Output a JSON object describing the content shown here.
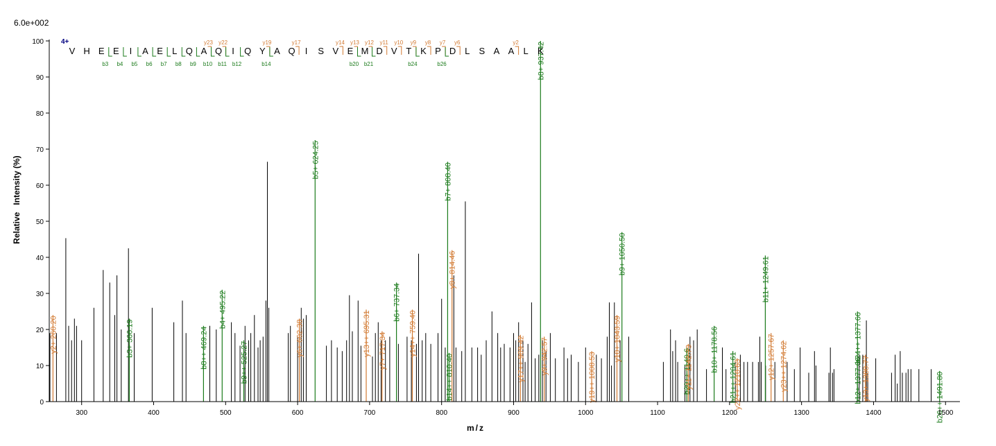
{
  "chart_data": {
    "type": "bar",
    "scale_label": "6.0e+002",
    "xlabel": "m/z",
    "ylabel": "Relative   Intensity (%)",
    "xlim": [
      255,
      1520
    ],
    "ylim": [
      0,
      100
    ],
    "x_ticks": [
      300,
      400,
      500,
      600,
      700,
      800,
      900,
      1000,
      1100,
      1200,
      1300,
      1400,
      1500
    ],
    "y_ticks": [
      0,
      10,
      20,
      30,
      40,
      50,
      60,
      70,
      80,
      90,
      100
    ],
    "colors": {
      "b": "#1a7a1a",
      "y": "#d27a32",
      "other": "#000000",
      "axis": "#000000",
      "charge": "#000080"
    },
    "charge_label": "4+",
    "sequence": [
      "V",
      "H",
      "E",
      "E",
      "I",
      "A",
      "E",
      "L",
      "Q",
      "A",
      "Q",
      "I",
      "Q",
      "Y",
      "A",
      "Q",
      "I",
      "S",
      "V",
      "E",
      "M",
      "D",
      "V",
      "T",
      "K",
      "P",
      "D",
      "L",
      "S",
      "A",
      "A",
      "L",
      "K"
    ],
    "b_ions": [
      {
        "after": 3,
        "label": "b3"
      },
      {
        "after": 4,
        "label": "b4"
      },
      {
        "after": 5,
        "label": "b5"
      },
      {
        "after": 6,
        "label": "b6"
      },
      {
        "after": 7,
        "label": "b7"
      },
      {
        "after": 8,
        "label": "b8"
      },
      {
        "after": 9,
        "label": "b9"
      },
      {
        "after": 10,
        "label": "b10"
      },
      {
        "after": 11,
        "label": "b11"
      },
      {
        "after": 12,
        "label": "b12"
      },
      {
        "after": 14,
        "label": "b14"
      },
      {
        "after": 20,
        "label": "b20"
      },
      {
        "after": 21,
        "label": "b21"
      },
      {
        "after": 24,
        "label": "b24"
      },
      {
        "after": 26,
        "label": "b26"
      }
    ],
    "y_ions": [
      {
        "after": 10,
        "label": "y23"
      },
      {
        "after": 11,
        "label": "y22"
      },
      {
        "after": 14,
        "label": "y19"
      },
      {
        "after": 16,
        "label": "y17"
      },
      {
        "after": 19,
        "label": "y14"
      },
      {
        "after": 20,
        "label": "y13"
      },
      {
        "after": 21,
        "label": "y12"
      },
      {
        "after": 22,
        "label": "y11"
      },
      {
        "after": 23,
        "label": "y10"
      },
      {
        "after": 24,
        "label": "y9"
      },
      {
        "after": 25,
        "label": "y8"
      },
      {
        "after": 26,
        "label": "y7"
      },
      {
        "after": 27,
        "label": "y6"
      },
      {
        "after": 31,
        "label": "y2"
      }
    ],
    "annotated_peaks": [
      {
        "mz": 260.2,
        "intensity": 24,
        "ion": "y",
        "label": "y2+ 260.20"
      },
      {
        "mz": 366.19,
        "intensity": 23,
        "ion": "b",
        "label": "b3+ 366.19"
      },
      {
        "mz": 469.24,
        "intensity": 21,
        "ion": "b",
        "label": "b8++ 469.24"
      },
      {
        "mz": 495.22,
        "intensity": 31,
        "ion": "b",
        "label": "b4+ 495.22"
      },
      {
        "mz": 525.27,
        "intensity": 17,
        "ion": "b",
        "label": "b9++ 525.27"
      },
      {
        "mz": 602.38,
        "intensity": 23,
        "ion": "y",
        "label": "y6+ 602.38"
      },
      {
        "mz": 624.25,
        "intensity": 72.5,
        "ion": "b",
        "label": "b5+ 624.25"
      },
      {
        "mz": 695.31,
        "intensity": 25.5,
        "ion": "y",
        "label": "y13++ 695.31"
      },
      {
        "mz": 717.34,
        "intensity": 19.5,
        "ion": "y",
        "label": "y7+ 717.34"
      },
      {
        "mz": 737.34,
        "intensity": 33,
        "ion": "b",
        "label": "b6+ 737.34"
      },
      {
        "mz": 759.4,
        "intensity": 25.5,
        "ion": "y",
        "label": "y14++ 759.40"
      },
      {
        "mz": 808.4,
        "intensity": 66.5,
        "ion": "b",
        "label": "b7+ 808.40"
      },
      {
        "mz": 810.4,
        "intensity": 13.5,
        "ion": "b",
        "label": "b14++ 810.40"
      },
      {
        "mz": 814.46,
        "intensity": 42,
        "ion": "y",
        "label": "y8+ 814.46"
      },
      {
        "mz": 909.42,
        "intensity": 18.5,
        "ion": "y",
        "label": "y17++ 909.42"
      },
      {
        "mz": 937.42,
        "intensity": 100,
        "ion": "b",
        "label": "b8+ 937.42"
      },
      {
        "mz": 942.57,
        "intensity": 18,
        "ion": "y",
        "label": "y9+ 942.57"
      },
      {
        "mz": 1008.53,
        "intensity": 14,
        "ion": "y",
        "label": "y19++ 1008.53"
      },
      {
        "mz": 1043.59,
        "intensity": 24,
        "ion": "y",
        "label": "y10+ 1043.59"
      },
      {
        "mz": 1050.5,
        "intensity": 47,
        "ion": "b",
        "label": "b9+ 1050.50"
      },
      {
        "mz": 1140.6,
        "intensity": 15,
        "ion": "b",
        "label": "b20++ 1140.6"
      },
      {
        "mz": 1142.73,
        "intensity": 16,
        "ion": "y",
        "label": "y11+ 1142.73"
      },
      {
        "mz": 1178.56,
        "intensity": 21,
        "ion": "b",
        "label": "b10+ 1178.56"
      },
      {
        "mz": 1204.61,
        "intensity": 14,
        "ion": "b",
        "label": "b21++ 1204.61"
      },
      {
        "mz": 1210.63,
        "intensity": 12,
        "ion": "y",
        "label": "y22++ 1210.63"
      },
      {
        "mz": 1249.61,
        "intensity": 40.5,
        "ion": "b",
        "label": "b11+ 1249.61"
      },
      {
        "mz": 1257.67,
        "intensity": 19,
        "ion": "y",
        "label": "y12+ 1257.67"
      },
      {
        "mz": 1274.62,
        "intensity": 17,
        "ion": "y",
        "label": "y23++ 1274.62"
      },
      {
        "mz": 1377.66,
        "intensity": 12.5,
        "ion": "b",
        "label": "b12+ 1377.66"
      },
      {
        "mz": 1377.66,
        "intensity": 25,
        "ion": "b",
        "label": "b24++ 1377.66"
      },
      {
        "mz": 1388.77,
        "intensity": 13,
        "ion": "y",
        "label": "y13+ 1388.77"
      },
      {
        "mz": 1491.8,
        "intensity": 8.5,
        "ion": "b",
        "label": "b26++ 1491.80"
      }
    ],
    "other_peaks": [
      [
        256,
        19
      ],
      [
        265,
        19
      ],
      [
        278,
        45.3
      ],
      [
        282,
        21
      ],
      [
        286,
        17
      ],
      [
        290,
        23
      ],
      [
        293,
        21
      ],
      [
        300,
        17
      ],
      [
        317,
        26
      ],
      [
        330,
        36.5
      ],
      [
        339,
        33
      ],
      [
        346,
        24
      ],
      [
        349,
        35
      ],
      [
        355,
        20
      ],
      [
        365,
        42.5
      ],
      [
        373,
        19
      ],
      [
        398,
        26
      ],
      [
        428,
        22
      ],
      [
        440,
        28
      ],
      [
        445,
        19
      ],
      [
        478,
        21
      ],
      [
        487,
        20
      ],
      [
        508,
        22
      ],
      [
        513,
        19
      ],
      [
        520,
        15.5
      ],
      [
        527,
        21
      ],
      [
        532,
        17
      ],
      [
        535,
        19
      ],
      [
        540,
        24
      ],
      [
        545,
        15
      ],
      [
        548,
        17
      ],
      [
        552,
        18
      ],
      [
        556,
        28
      ],
      [
        558,
        66.5
      ],
      [
        560,
        26
      ],
      [
        587,
        19
      ],
      [
        590,
        21
      ],
      [
        600,
        18
      ],
      [
        605,
        26
      ],
      [
        608,
        23
      ],
      [
        612,
        24
      ],
      [
        640,
        15.5
      ],
      [
        647,
        17
      ],
      [
        655,
        15
      ],
      [
        662,
        14
      ],
      [
        668,
        17
      ],
      [
        672,
        29.5
      ],
      [
        676,
        19.5
      ],
      [
        684,
        28
      ],
      [
        688,
        15.5
      ],
      [
        704,
        12.5
      ],
      [
        708,
        19
      ],
      [
        712,
        22
      ],
      [
        716,
        17
      ],
      [
        722,
        17
      ],
      [
        728,
        18
      ],
      [
        740,
        16
      ],
      [
        752,
        18
      ],
      [
        758,
        17
      ],
      [
        765,
        16
      ],
      [
        768,
        41
      ],
      [
        773,
        17
      ],
      [
        778,
        19
      ],
      [
        785,
        16
      ],
      [
        795,
        19
      ],
      [
        800,
        28.5
      ],
      [
        805,
        15
      ],
      [
        817,
        35
      ],
      [
        820,
        15
      ],
      [
        828,
        14
      ],
      [
        833,
        55.5
      ],
      [
        842,
        15
      ],
      [
        850,
        15
      ],
      [
        855,
        13
      ],
      [
        862,
        17
      ],
      [
        870,
        25
      ],
      [
        878,
        19
      ],
      [
        882,
        15
      ],
      [
        887,
        16
      ],
      [
        895,
        15
      ],
      [
        900,
        19
      ],
      [
        903,
        17
      ],
      [
        907,
        22
      ],
      [
        913,
        17
      ],
      [
        916,
        11
      ],
      [
        920,
        16
      ],
      [
        925,
        27.5
      ],
      [
        930,
        12
      ],
      [
        935,
        13
      ],
      [
        940,
        17
      ],
      [
        945,
        14
      ],
      [
        951,
        19
      ],
      [
        958,
        12
      ],
      [
        970,
        15
      ],
      [
        975,
        12
      ],
      [
        980,
        13
      ],
      [
        990,
        11
      ],
      [
        1000,
        15
      ],
      [
        1015,
        13
      ],
      [
        1022,
        12
      ],
      [
        1030,
        18
      ],
      [
        1033,
        27.5
      ],
      [
        1036,
        10
      ],
      [
        1040,
        27.5
      ],
      [
        1048,
        17
      ],
      [
        1060,
        18
      ],
      [
        1108,
        11
      ],
      [
        1118,
        20
      ],
      [
        1121,
        14
      ],
      [
        1125,
        17
      ],
      [
        1128,
        11
      ],
      [
        1138,
        10
      ],
      [
        1145,
        18
      ],
      [
        1150,
        17
      ],
      [
        1155,
        20
      ],
      [
        1168,
        9
      ],
      [
        1190,
        15
      ],
      [
        1195,
        9
      ],
      [
        1208,
        11
      ],
      [
        1215,
        13
      ],
      [
        1220,
        11
      ],
      [
        1225,
        11
      ],
      [
        1232,
        11
      ],
      [
        1240,
        11
      ],
      [
        1242,
        18
      ],
      [
        1244,
        11
      ],
      [
        1250,
        10
      ],
      [
        1263,
        11
      ],
      [
        1280,
        11
      ],
      [
        1290,
        9
      ],
      [
        1298,
        15
      ],
      [
        1310,
        8
      ],
      [
        1318,
        14
      ],
      [
        1320,
        10
      ],
      [
        1338,
        8
      ],
      [
        1340,
        15
      ],
      [
        1343,
        8
      ],
      [
        1345,
        9
      ],
      [
        1380,
        13
      ],
      [
        1385,
        13
      ],
      [
        1390,
        22.5
      ],
      [
        1392,
        8
      ],
      [
        1403,
        12
      ],
      [
        1425,
        8
      ],
      [
        1430,
        13
      ],
      [
        1433,
        5
      ],
      [
        1437,
        14
      ],
      [
        1440,
        8
      ],
      [
        1445,
        8
      ],
      [
        1448,
        9
      ],
      [
        1452,
        9
      ],
      [
        1463,
        9
      ],
      [
        1480,
        9
      ]
    ]
  }
}
